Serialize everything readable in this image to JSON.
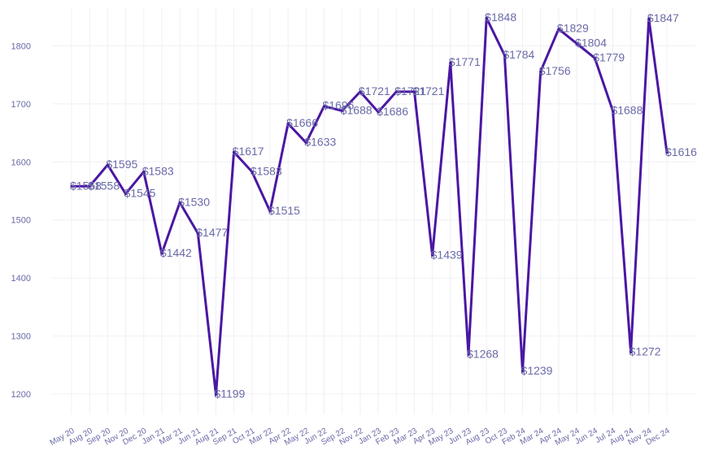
{
  "chart_data": {
    "type": "line",
    "title": "",
    "xlabel": "",
    "ylabel": "",
    "ylim": [
      1165,
      1865
    ],
    "yticks": [
      1200,
      1300,
      1400,
      1500,
      1600,
      1700,
      1800
    ],
    "grid": true,
    "legend": "none",
    "colors": {
      "line": "#4a17a3",
      "label": "#6a6aa8",
      "tick": "#6a6aa8",
      "grid": "#f0f0f5"
    },
    "categories": [
      "May 20",
      "Aug 20",
      "Sep 20",
      "Nov 20",
      "Dec 20",
      "Jan 21",
      "Mar 21",
      "Jun 21",
      "Aug 21",
      "Sep 21",
      "Oct 21",
      "Mar 22",
      "Apr 22",
      "May 22",
      "Jun 22",
      "Sep 22",
      "Nov 22",
      "Jan 23",
      "Feb 23",
      "Mar 23",
      "Apr 23",
      "May 23",
      "Jun 23",
      "Aug 23",
      "Oct 23",
      "Feb 24",
      "Mar 24",
      "Apr 24",
      "May 24",
      "Jun 24",
      "Jul 24",
      "Aug 24",
      "Nov 24",
      "Dec 24"
    ],
    "series": [
      {
        "values": [
          1558,
          1558,
          1595,
          1545,
          1583,
          1442,
          1530,
          1477,
          1199,
          1617,
          1583,
          1515,
          1666,
          1633,
          1696,
          1688,
          1721,
          1686,
          1721,
          1721,
          1439,
          1771,
          1268,
          1848,
          1784,
          1239,
          1756,
          1829,
          1804,
          1779,
          1688,
          1272,
          1847,
          1616
        ],
        "labels": [
          "$1558",
          "$1558",
          "$1595",
          "$1545",
          "$1583",
          "$1442",
          "$1530",
          "$1477",
          "$1199",
          "$1617",
          "$1583",
          "$1515",
          "$1666",
          "$1633",
          "$1696",
          "$1688",
          "$1721",
          "$1686",
          "$1721",
          "$1721",
          "$1439",
          "$1771",
          "$1268",
          "$1848",
          "$1784",
          "$1239",
          "$1756",
          "$1829",
          "$1804",
          "$1779",
          "$1688",
          "$1272",
          "$1847",
          "$1616"
        ]
      }
    ]
  }
}
